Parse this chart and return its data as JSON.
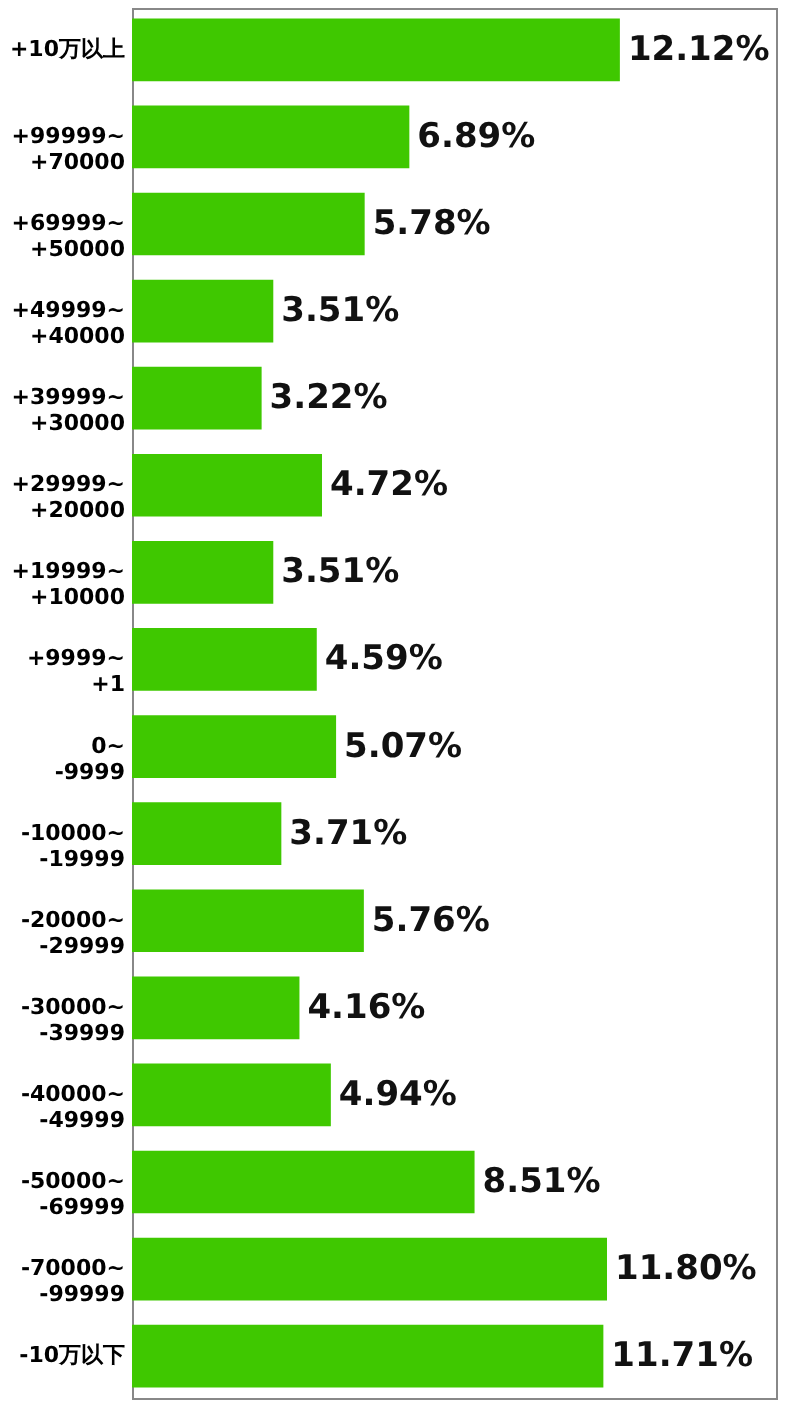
{
  "chart_data": {
    "type": "bar",
    "orientation": "horizontal",
    "color": "#3fc800",
    "categories": [
      "+10万以上",
      "+99999~\n+70000",
      "+69999~\n+50000",
      "+49999~\n+40000",
      "+39999~\n+30000",
      "+29999~\n+20000",
      "+19999~\n+10000",
      "+9999~\n+1",
      "0~\n-9999",
      "-10000~\n-19999",
      "-20000~\n-29999",
      "-30000~\n-39999",
      "-40000~\n-49999",
      "-50000~\n-69999",
      "-70000~\n-99999",
      "-10万以下"
    ],
    "values": [
      12.12,
      6.89,
      5.78,
      3.51,
      3.22,
      4.72,
      3.51,
      4.59,
      5.07,
      3.71,
      5.76,
      4.16,
      4.94,
      8.51,
      11.8,
      11.71
    ],
    "value_labels": [
      "12.12%",
      "6.89%",
      "5.78%",
      "3.51%",
      "3.22%",
      "4.72%",
      "3.51%",
      "4.59%",
      "5.07%",
      "3.71%",
      "5.76%",
      "4.16%",
      "4.94%",
      "8.51%",
      "11.80%",
      "11.71%"
    ]
  }
}
